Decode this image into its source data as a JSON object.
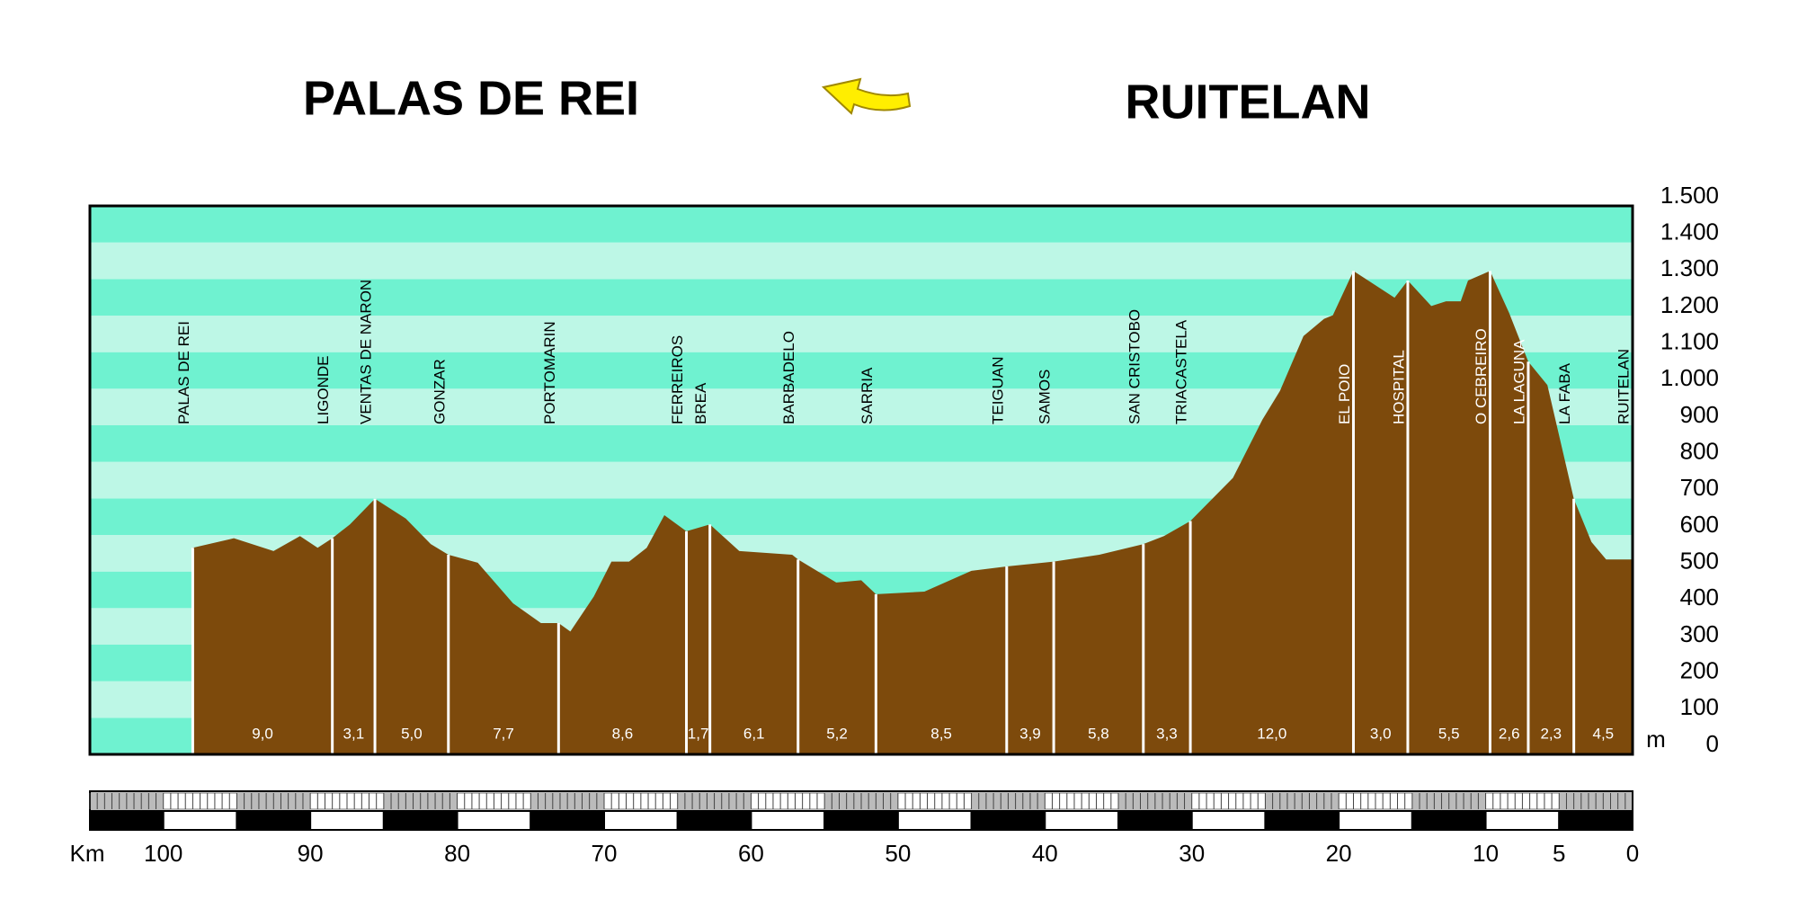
{
  "chart_data": {
    "type": "area",
    "title_left": "PALAS DE REI",
    "title_right": "RUITELAN",
    "x_label": "Km",
    "y_label": "m",
    "color": "#7d4a0c",
    "stripe_colors": [
      "#6ff2d0",
      "#bdf7e6"
    ],
    "xlim": [
      105,
      0
    ],
    "xticks": [
      100,
      90,
      80,
      70,
      60,
      50,
      40,
      30,
      20,
      10,
      5,
      0
    ],
    "ylim": [
      0,
      1500
    ],
    "yticks": [
      0,
      100,
      200,
      300,
      400,
      500,
      600,
      700,
      800,
      900,
      {
        "value": 1000,
        "label": "1.000"
      },
      {
        "value": 1100,
        "label": "1.100"
      },
      {
        "value": 1200,
        "label": "1.200"
      },
      {
        "value": 1300,
        "label": "1.300"
      },
      {
        "value": 1400,
        "label": "1.400"
      },
      {
        "value": 1500,
        "label": "1.500"
      }
    ],
    "x": [
      98.0,
      95.2,
      92.5,
      90.7,
      89.5,
      88.5,
      87.3,
      85.6,
      83.5,
      81.8,
      80.6,
      78.6,
      76.2,
      74.3,
      73.1,
      72.3,
      70.7,
      69.5,
      68.3,
      67.1,
      65.9,
      64.4,
      62.8,
      60.8,
      57.2,
      56.8,
      54.2,
      52.5,
      51.5,
      48.2,
      45.0,
      42.6,
      39.4,
      36.3,
      33.3,
      31.9,
      30.1,
      27.2,
      25.2,
      24.0,
      22.4,
      21.0,
      20.4,
      19.0,
      16.2,
      15.3,
      13.7,
      12.7,
      11.7,
      11.2,
      9.7,
      8.4,
      7.1,
      5.8,
      4.0,
      2.8,
      1.8,
      0
    ],
    "values": [
      565,
      591,
      556,
      597,
      565,
      591,
      629,
      699,
      645,
      575,
      546,
      524,
      413,
      359,
      359,
      336,
      432,
      527,
      527,
      565,
      654,
      610,
      629,
      556,
      546,
      533,
      470,
      476,
      438,
      445,
      502,
      514,
      527,
      546,
      575,
      597,
      638,
      756,
      915,
      994,
      1144,
      1191,
      1201,
      1322,
      1249,
      1296,
      1226,
      1239,
      1239,
      1296,
      1322,
      1207,
      1074,
      1010,
      699,
      581,
      533,
      533
    ],
    "markers": [
      {
        "label": "PALAS DE REI",
        "x": 98.0
      },
      {
        "label": "LIGONDE",
        "x": 88.5
      },
      {
        "label": "VENTAS DE NARON",
        "x": 85.6
      },
      {
        "label": "GONZAR",
        "x": 80.6
      },
      {
        "label": "PORTOMARIN",
        "x": 73.1
      },
      {
        "label": "FERREIROS",
        "x": 64.4
      },
      {
        "label": "BREA",
        "x": 62.8
      },
      {
        "label": "BARBADELO",
        "x": 56.8
      },
      {
        "label": "SARRIA",
        "x": 51.5
      },
      {
        "label": "TEIGUAN",
        "x": 42.6
      },
      {
        "label": "SAMOS",
        "x": 39.4
      },
      {
        "label": "SAN CRISTOBO",
        "x": 33.3
      },
      {
        "label": "TRIACASTELA",
        "x": 30.1
      },
      {
        "label": "EL POIO",
        "x": 19.0
      },
      {
        "label": "HOSPITAL",
        "x": 15.3
      },
      {
        "label": "O CEBREIRO",
        "x": 9.7
      },
      {
        "label": "LA LAGUNA",
        "x": 7.1
      },
      {
        "label": "LA FABA",
        "x": 4.0
      },
      {
        "label": "RUITELAN",
        "x": 0
      }
    ],
    "segment_labels": [
      "9,0",
      "3,1",
      "5,0",
      "7,7",
      "8,6",
      "1,7",
      "6,1",
      "5,2",
      "8,5",
      "3,9",
      "5,8",
      "3,3",
      "12,0",
      "3,0",
      "5,5",
      "2,6",
      "2,3",
      "4,5"
    ]
  }
}
